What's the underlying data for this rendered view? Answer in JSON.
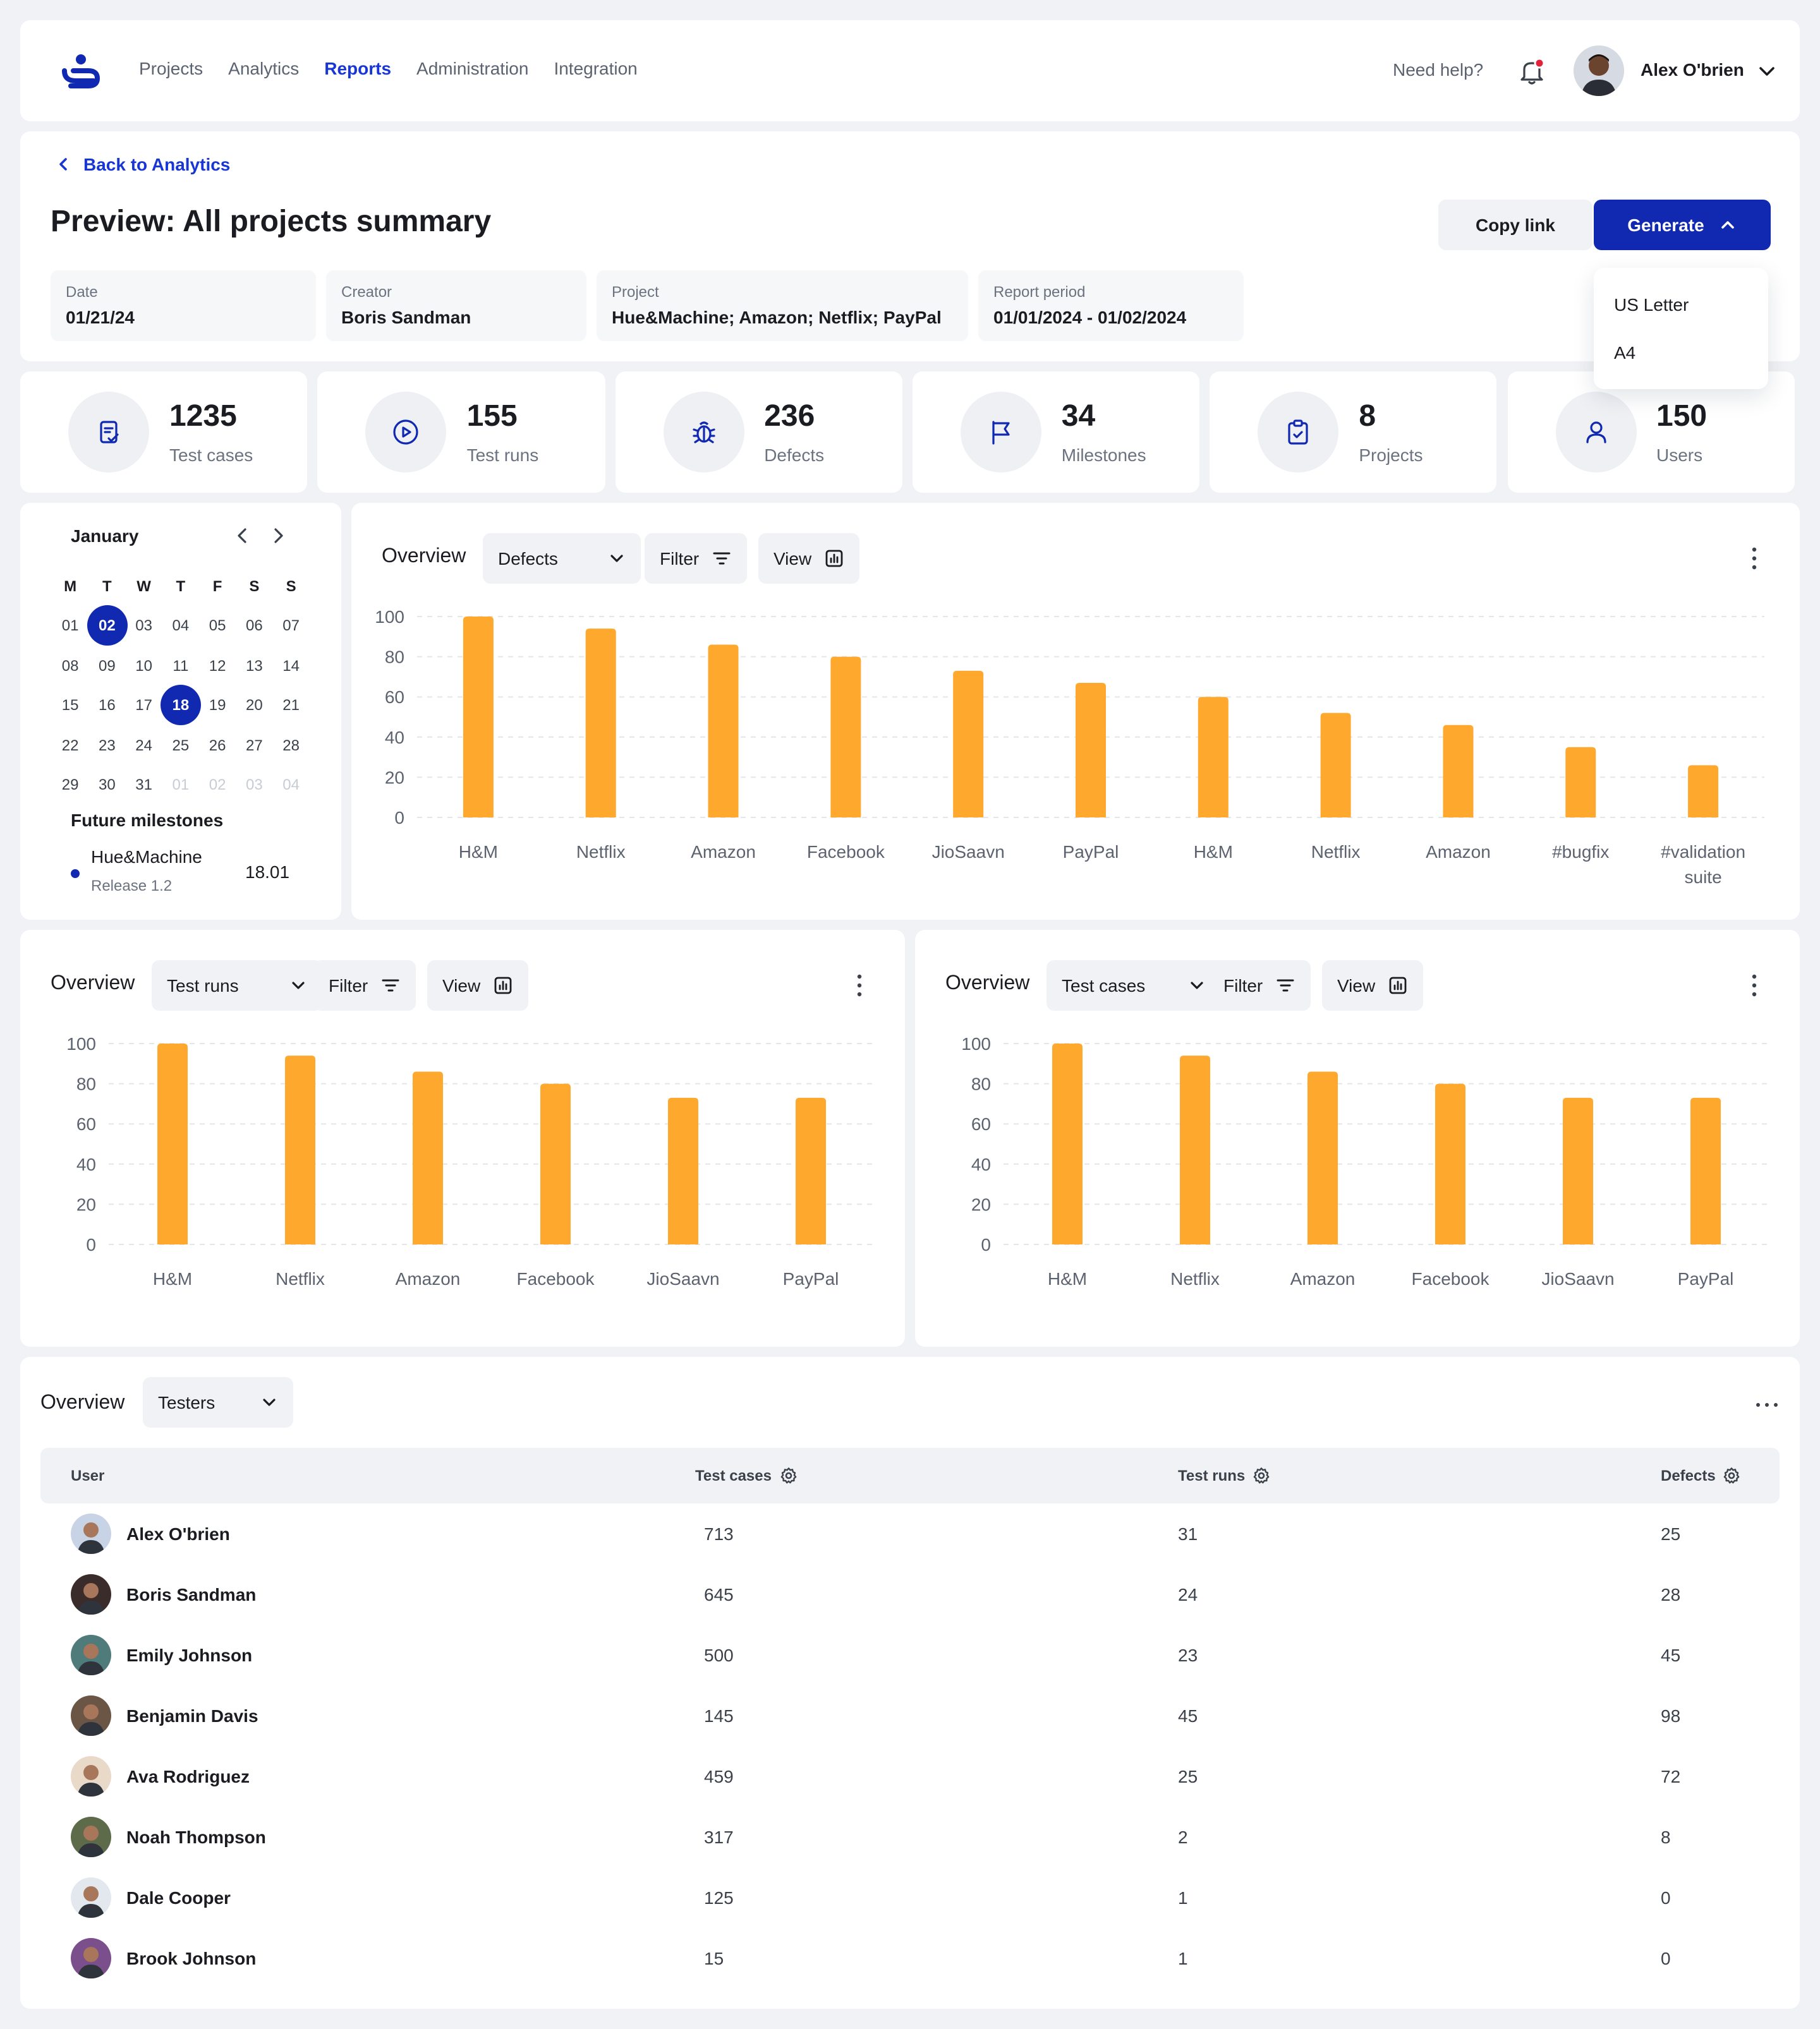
{
  "nav": {
    "links": [
      "Projects",
      "Analytics",
      "Reports",
      "Administration",
      "Integration"
    ],
    "active_index": 2,
    "help": "Need help?",
    "user_name": "Alex O'brien"
  },
  "header": {
    "back_label": "Back to Analytics",
    "title": "Preview: All projects summary",
    "copy_label": "Copy link",
    "generate_label": "Generate",
    "meta": [
      {
        "label": "Date",
        "value": "01/21/24"
      },
      {
        "label": "Creator",
        "value": "Boris Sandman"
      },
      {
        "label": "Project",
        "value": "Hue&Machine; Amazon; Netflix; PayPal"
      },
      {
        "label": "Report period",
        "value": "01/01/2024 - 01/02/2024"
      }
    ],
    "dropdown": [
      "US Letter",
      "A4"
    ]
  },
  "stats": [
    {
      "value": "1235",
      "label": "Test cases",
      "icon": "test-cases-icon"
    },
    {
      "value": "155",
      "label": "Test runs",
      "icon": "play-icon"
    },
    {
      "value": "236",
      "label": "Defects",
      "icon": "bug-icon"
    },
    {
      "value": "34",
      "label": "Milestones",
      "icon": "flag-icon"
    },
    {
      "value": "8",
      "label": "Projects",
      "icon": "clipboard-icon"
    },
    {
      "value": "150",
      "label": "Users",
      "icon": "user-icon"
    }
  ],
  "calendar": {
    "month": "January",
    "weekdays": [
      "M",
      "T",
      "W",
      "T",
      "F",
      "S",
      "S"
    ],
    "weeks": [
      [
        "01",
        "02",
        "03",
        "04",
        "05",
        "06",
        "07"
      ],
      [
        "08",
        "09",
        "10",
        "11",
        "12",
        "13",
        "14"
      ],
      [
        "15",
        "16",
        "17",
        "18",
        "19",
        "20",
        "21"
      ],
      [
        "22",
        "23",
        "24",
        "25",
        "26",
        "27",
        "28"
      ],
      [
        "29",
        "30",
        "31",
        "01",
        "02",
        "03",
        "04"
      ]
    ],
    "selected": [
      "02",
      "18"
    ],
    "future_milestones_title": "Future milestones",
    "milestone": {
      "name": "Hue&Machine",
      "release": "Release 1.2",
      "date": "18.01"
    }
  },
  "controls": {
    "overview_label": "Overview",
    "filter_label": "Filter",
    "view_label": "View"
  },
  "chart_data": [
    {
      "type": "bar",
      "selector": "Defects",
      "categories": [
        "H&M",
        "Netflix",
        "Amazon",
        "Facebook",
        "JioSaavn",
        "PayPal",
        "H&M",
        "Netflix",
        "Amazon",
        "#bugfix",
        "#validationsuite"
      ],
      "values": [
        100,
        94,
        86,
        80,
        73,
        67,
        60,
        52,
        46,
        35,
        26
      ],
      "yticks": [
        0,
        20,
        40,
        60,
        80,
        100
      ],
      "ylim": [
        0,
        100
      ],
      "bar_color": "#ffa82e",
      "grid": true
    },
    {
      "type": "bar",
      "selector": "Test runs",
      "categories": [
        "H&M",
        "Netflix",
        "Amazon",
        "Facebook",
        "JioSaavn",
        "PayPal"
      ],
      "values": [
        100,
        94,
        86,
        80,
        73,
        73
      ],
      "yticks": [
        0,
        20,
        40,
        60,
        80,
        100
      ],
      "ylim": [
        0,
        100
      ],
      "bar_color": "#ffa82e",
      "grid": true
    },
    {
      "type": "bar",
      "selector": "Test cases",
      "categories": [
        "H&M",
        "Netflix",
        "Amazon",
        "Facebook",
        "JioSaavn",
        "PayPal"
      ],
      "values": [
        100,
        94,
        86,
        80,
        73,
        73
      ],
      "yticks": [
        0,
        20,
        40,
        60,
        80,
        100
      ],
      "ylim": [
        0,
        100
      ],
      "bar_color": "#ffa82e",
      "grid": true
    }
  ],
  "table": {
    "selector": "Testers",
    "columns": [
      "User",
      "Test cases",
      "Test runs",
      "Defects"
    ],
    "rows": [
      {
        "name": "Alex O'brien",
        "test_cases": "713",
        "test_runs": "31",
        "defects": "25",
        "avatar_color": "#c9d3e6"
      },
      {
        "name": "Boris Sandman",
        "test_cases": "645",
        "test_runs": "24",
        "defects": "28",
        "avatar_color": "#3a2c2a"
      },
      {
        "name": "Emily Johnson",
        "test_cases": "500",
        "test_runs": "23",
        "defects": "45",
        "avatar_color": "#4f7c7a"
      },
      {
        "name": "Benjamin Davis",
        "test_cases": "145",
        "test_runs": "45",
        "defects": "98",
        "avatar_color": "#6b5544"
      },
      {
        "name": "Ava Rodriguez",
        "test_cases": "459",
        "test_runs": "25",
        "defects": "72",
        "avatar_color": "#e9d9c8"
      },
      {
        "name": "Noah Thompson",
        "test_cases": "317",
        "test_runs": "2",
        "defects": "8",
        "avatar_color": "#5d6b4a"
      },
      {
        "name": "Dale Cooper",
        "test_cases": "125",
        "test_runs": "1",
        "defects": "0",
        "avatar_color": "#e3e7ee"
      },
      {
        "name": "Brook Johnson",
        "test_cases": "15",
        "test_runs": "1",
        "defects": "0",
        "avatar_color": "#7a4f8c"
      }
    ]
  },
  "colors": {
    "accent": "#1029b0",
    "link": "#1836d6",
    "bar": "#ffa82e",
    "notification": "#e5213a"
  }
}
